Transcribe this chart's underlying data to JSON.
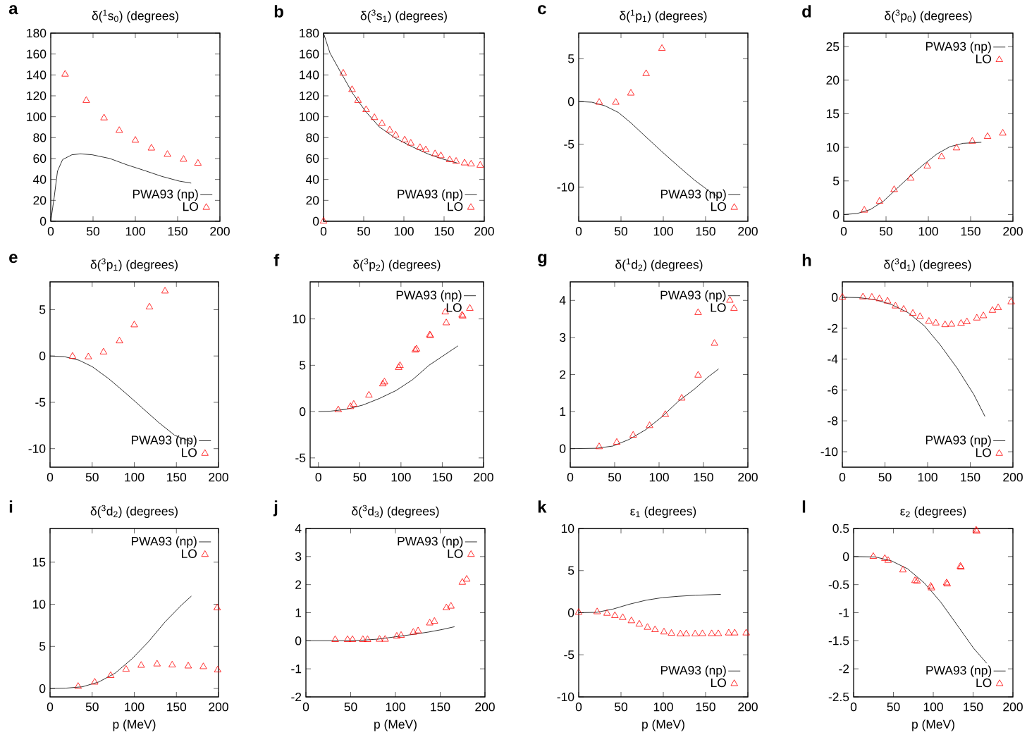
{
  "chart_data": [
    {
      "type": "line",
      "title": "δ($^{1}$s$_{0}$) (degrees)",
      "annotations": [
        "a"
      ],
      "legend": "bottom right",
      "xlim": [
        0,
        200
      ],
      "xticks": [
        0,
        50,
        100,
        150,
        200
      ],
      "ylim": [
        0,
        180
      ],
      "yticks": [
        0,
        20,
        40,
        60,
        80,
        100,
        120,
        140,
        160,
        180
      ],
      "series": [
        {
          "name": "PWA93 (np)",
          "color": "#000000",
          "type": "line",
          "x": [
            0,
            4,
            8,
            14,
            25,
            35,
            49,
            70,
            90,
            111,
            131,
            152,
            166
          ],
          "values": [
            0,
            22.6,
            48,
            59,
            63.6,
            64.5,
            63.6,
            60,
            54,
            48.5,
            43,
            38.4,
            36.5
          ]
        },
        {
          "name": "LO",
          "color": "#ff0000",
          "type": "scatter",
          "marker": "triangle",
          "x": [
            17,
            42,
            63,
            81,
            100,
            119,
            138,
            157,
            174
          ],
          "values": [
            140.6,
            115.5,
            98.8,
            86.8,
            77.4,
            69.9,
            63.9,
            59.2,
            55.4
          ]
        }
      ]
    },
    {
      "type": "line",
      "title": "δ($^{3}$s$_{1}$) (degrees)",
      "annotations": [
        "b"
      ],
      "legend": "bottom right",
      "xlim": [
        0,
        200
      ],
      "xticks": [
        0,
        50,
        100,
        150,
        200
      ],
      "ylim": [
        0,
        180
      ],
      "yticks": [
        0,
        20,
        40,
        60,
        80,
        100,
        120,
        140,
        160,
        180
      ],
      "series": [
        {
          "name": "PWA93 (np)",
          "color": "#000000",
          "type": "line",
          "x": [
            0,
            8,
            20.4,
            36.7,
            53,
            69.4,
            89.8,
            110,
            130.6,
            147,
            166.5
          ],
          "values": [
            180,
            161,
            143.8,
            121.8,
            104.5,
            90.3,
            79.3,
            71.4,
            64.2,
            59.8,
            55.7
          ]
        },
        {
          "name": "LO",
          "color": "#ff0000",
          "type": "scatter",
          "marker": "triangle",
          "x": [
            0,
            24.5,
            35.5,
            42.9,
            53,
            63.3,
            72.7,
            82.4,
            89.8,
            101,
            108.6,
            120,
            127.3,
            138.8,
            146,
            157,
            165,
            175.5,
            183.7,
            195
          ],
          "values": [
            0,
            141.6,
            125.9,
            115.5,
            106.7,
            99.1,
            93.5,
            87.2,
            82.4,
            77.7,
            74.6,
            70.5,
            68.3,
            64.5,
            62.6,
            58.8,
            57.3,
            55.7,
            54.7,
            53.5
          ]
        }
      ]
    },
    {
      "type": "line",
      "title": "δ($^{1}$p$_{1}$) (degrees)",
      "annotations": [
        "c"
      ],
      "legend": "bottom right",
      "xlim": [
        0,
        200
      ],
      "xticks": [
        0,
        50,
        100,
        150,
        200
      ],
      "ylim": [
        -14,
        8
      ],
      "yticks": [
        -10,
        -5,
        0,
        5
      ],
      "series": [
        {
          "name": "PWA93 (np)",
          "color": "#000000",
          "type": "line",
          "x": [
            0,
            15.6,
            31,
            46.9,
            62.5,
            78,
            97.7,
            117,
            137,
            156,
            166
          ],
          "values": [
            0,
            -0.08,
            -0.5,
            -1.28,
            -2.56,
            -4,
            -5.8,
            -7.5,
            -9.2,
            -10.6,
            -11.2
          ]
        },
        {
          "name": "LO",
          "color": "#ff0000",
          "type": "scatter",
          "marker": "triangle",
          "x": [
            24.2,
            43.8,
            61.7,
            79.7,
            98.4
          ],
          "values": [
            -0.1,
            -0.1,
            0.97,
            3.26,
            6.2
          ]
        }
      ]
    },
    {
      "type": "line",
      "title": "δ($^{3}$p$_{0}$) (degrees)",
      "annotations": [
        "d"
      ],
      "legend": "top right",
      "xlim": [
        0,
        200
      ],
      "xticks": [
        0,
        50,
        100,
        150,
        200
      ],
      "ylim": [
        -1,
        27
      ],
      "yticks": [
        0,
        5,
        10,
        15,
        20,
        25
      ],
      "series": [
        {
          "name": "PWA93 (np)",
          "color": "#000000",
          "type": "line",
          "x": [
            0,
            15.7,
            31.4,
            47,
            62.7,
            78.4,
            94,
            110,
            125.5,
            141,
            162.7
          ],
          "values": [
            0,
            0.15,
            0.74,
            2.0,
            3.85,
            5.7,
            7.4,
            9.0,
            10.1,
            10.6,
            10.75
          ]
        },
        {
          "name": "LO",
          "color": "#ff0000",
          "type": "scatter",
          "marker": "triangle",
          "x": [
            24.3,
            42.4,
            59.6,
            79.2,
            98.8,
            115.7,
            133.3,
            152,
            170,
            188
          ],
          "values": [
            0.64,
            1.97,
            3.7,
            5.4,
            7.2,
            8.6,
            9.9,
            10.9,
            11.6,
            12.1
          ]
        }
      ]
    },
    {
      "type": "line",
      "title": "δ($^{3}$p$_{1}$) (degrees)",
      "annotations": [
        "e"
      ],
      "legend": "bottom right",
      "xlim": [
        0,
        200
      ],
      "xticks": [
        0,
        50,
        100,
        150,
        200
      ],
      "ylim": [
        -12,
        8
      ],
      "yticks": [
        -10,
        -5,
        0,
        5
      ],
      "series": [
        {
          "name": "PWA93 (np)",
          "color": "#000000",
          "type": "line",
          "x": [
            0,
            16.9,
            34.5,
            50.2,
            69.8,
            89.4,
            109,
            128.6,
            148,
            167.8
          ],
          "values": [
            0,
            -0.07,
            -0.46,
            -1.16,
            -2.46,
            -3.98,
            -5.56,
            -7.15,
            -8.56,
            -9.26
          ]
        },
        {
          "name": "LO",
          "color": "#ff0000",
          "type": "scatter",
          "marker": "triangle",
          "x": [
            26.7,
            45.5,
            63.5,
            82.4,
            100,
            118,
            136.5
          ],
          "values": [
            -0.04,
            -0.1,
            0.42,
            1.62,
            3.35,
            5.28,
            7.0
          ]
        }
      ]
    },
    {
      "type": "line",
      "title": "δ($^{3}$p$_{2}$) (degrees)",
      "annotations": [
        "f"
      ],
      "legend": "top right",
      "xlim": [
        -10,
        200
      ],
      "xticks": [
        0,
        50,
        100,
        150,
        200
      ],
      "ylim": [
        -6,
        14
      ],
      "yticks": [
        -5,
        0,
        5,
        10
      ],
      "series": [
        {
          "name": "PWA93 (np)",
          "color": "#000000",
          "type": "line",
          "x": [
            0,
            14,
            34,
            54,
            74,
            94,
            114,
            134,
            169
          ],
          "values": [
            0,
            0.04,
            0.25,
            0.71,
            1.42,
            2.27,
            3.44,
            5.0,
            7.09
          ]
        },
        {
          "name": "LO",
          "color": "#ff0000",
          "type": "scatter",
          "marker": "triangle",
          "x": [
            24,
            38.8,
            42.8,
            61.2,
            78,
            80,
            97.2,
            98.8,
            117.2,
            118.8,
            134.8,
            135.6,
            153.6,
            154.8,
            174,
            174.8
          ],
          "values": [
            0.18,
            0.53,
            0.78,
            1.77,
            2.98,
            3.19,
            4.75,
            4.96,
            6.63,
            6.74,
            8.26,
            8.2,
            10.74,
            9.57,
            10.4,
            10.3
          ]
        }
      ]
    },
    {
      "type": "line",
      "title": "δ($^{1}$d$_{2}$) (degrees)",
      "annotations": [
        "g"
      ],
      "legend": "top right",
      "xlim": [
        0,
        200
      ],
      "xticks": [
        0,
        50,
        100,
        150,
        200
      ],
      "ylim": [
        -0.5,
        4.5
      ],
      "yticks": [
        0,
        1,
        2,
        3,
        4
      ],
      "series": [
        {
          "name": "PWA93 (np)",
          "color": "#000000",
          "type": "line",
          "x": [
            0,
            29.5,
            48,
            66.4,
            84.9,
            103.3,
            121.8,
            140,
            155,
            167
          ],
          "values": [
            0,
            0.01,
            0.07,
            0.25,
            0.51,
            0.86,
            1.28,
            1.61,
            1.93,
            2.15
          ]
        },
        {
          "name": "LO",
          "color": "#ff0000",
          "type": "scatter",
          "marker": "triangle",
          "x": [
            32.5,
            52.4,
            70.8,
            89.3,
            107,
            125.5,
            144,
            144,
            162.4,
            179.7
          ],
          "values": [
            0.05,
            0.17,
            0.36,
            0.62,
            0.92,
            1.36,
            1.98,
            3.67,
            2.84,
            4.0
          ]
        }
      ]
    },
    {
      "type": "line",
      "title": "δ($^{3}$d$_{1}$) (degrees)",
      "annotations": [
        "h"
      ],
      "legend": "bottom right",
      "xlim": [
        0,
        200
      ],
      "xticks": [
        0,
        50,
        100,
        150,
        200
      ],
      "ylim": [
        -11,
        1
      ],
      "yticks": [
        -10,
        -8,
        -6,
        -4,
        -2,
        0
      ],
      "series": [
        {
          "name": "PWA93 (np)",
          "color": "#000000",
          "type": "line",
          "x": [
            0,
            19,
            38.5,
            57.7,
            77,
            96,
            115,
            134.6,
            154,
            167.3
          ],
          "values": [
            0,
            -0.02,
            -0.15,
            -0.47,
            -0.99,
            -1.84,
            -3.1,
            -4.59,
            -6.28,
            -7.72
          ]
        },
        {
          "name": "LO",
          "color": "#ff0000",
          "type": "scatter",
          "marker": "triangle",
          "x": [
            0,
            24.2,
            34.6,
            43.5,
            53,
            62.3,
            71.9,
            82.7,
            91.2,
            101.5,
            109.6,
            120.4,
            128,
            139.2,
            146,
            157.7,
            165.4,
            176,
            182.7,
            198
          ],
          "values": [
            0,
            0.02,
            0,
            -0.1,
            -0.25,
            -0.57,
            -0.78,
            -1.04,
            -1.25,
            -1.56,
            -1.67,
            -1.78,
            -1.75,
            -1.69,
            -1.59,
            -1.35,
            -1.2,
            -0.85,
            -0.68,
            -0.3
          ]
        }
      ]
    },
    {
      "type": "line",
      "title": "δ($^{3}$d$_{2}$) (degrees)",
      "xlabel": "p (MeV)",
      "annotations": [
        "i"
      ],
      "legend": "top right",
      "xlim": [
        0,
        200
      ],
      "xticks": [
        0,
        50,
        100,
        150,
        200
      ],
      "ylim": [
        -1,
        19
      ],
      "yticks": [
        0,
        5,
        10,
        15
      ],
      "series": [
        {
          "name": "PWA93 (np)",
          "color": "#000000",
          "type": "line",
          "x": [
            0,
            18.8,
            38.4,
            58,
            77.6,
            97.3,
            116.9,
            136.5,
            156,
            167.8
          ],
          "values": [
            0,
            0.04,
            0.2,
            0.78,
            1.84,
            3.53,
            5.56,
            7.9,
            9.9,
            10.97
          ]
        },
        {
          "name": "LO",
          "color": "#ff0000",
          "type": "scatter",
          "marker": "triangle",
          "x": [
            33.3,
            53,
            72,
            90.2,
            108.2,
            127,
            145,
            164,
            182,
            199,
            198.4
          ],
          "values": [
            0.24,
            0.74,
            1.53,
            2.27,
            2.74,
            2.9,
            2.78,
            2.66,
            2.58,
            2.19,
            9.56
          ]
        }
      ]
    },
    {
      "type": "line",
      "title": "δ($^{3}$d$_{3}$) (degrees)",
      "xlabel": "p (MeV)",
      "annotations": [
        "j"
      ],
      "legend": "top right",
      "xlim": [
        0,
        200
      ],
      "xticks": [
        0,
        50,
        100,
        150,
        200
      ],
      "ylim": [
        -2,
        4
      ],
      "yticks": [
        -2,
        -1,
        0,
        1,
        2,
        3,
        4
      ],
      "series": [
        {
          "name": "PWA93 (np)",
          "color": "#000000",
          "type": "line",
          "x": [
            0,
            43.9,
            62.5,
            81,
            99.6,
            118.2,
            136.8,
            152,
            166
          ],
          "values": [
            0,
            0,
            0.02,
            0.06,
            0.14,
            0.22,
            0.31,
            0.4,
            0.5
          ]
        },
        {
          "name": "LO",
          "color": "#ff0000",
          "type": "scatter",
          "marker": "triangle",
          "x": [
            32.7,
            46.5,
            52,
            63.6,
            68.8,
            82.2,
            88.5,
            101.5,
            106.3,
            120,
            125.3,
            138.3,
            143.5,
            156.9,
            162,
            174.7,
            179.6
          ],
          "values": [
            0.04,
            0.04,
            0.04,
            0.04,
            0.04,
            0.05,
            0.05,
            0.16,
            0.19,
            0.3,
            0.35,
            0.63,
            0.69,
            1.17,
            1.23,
            2.08,
            2.19
          ]
        }
      ]
    },
    {
      "type": "line",
      "title": "ε$_{1}$ (degrees)",
      "xlabel": "p (MeV)",
      "annotations": [
        "k"
      ],
      "legend": "bottom right",
      "xlim": [
        0,
        200
      ],
      "xticks": [
        0,
        50,
        100,
        150,
        200
      ],
      "ylim": [
        -10,
        10
      ],
      "yticks": [
        -10,
        -5,
        0,
        5,
        10
      ],
      "series": [
        {
          "name": "PWA93 (np)",
          "color": "#000000",
          "type": "line",
          "x": [
            0,
            21,
            40.5,
            60,
            79.4,
            98.8,
            118.3,
            137.7,
            168
          ],
          "values": [
            0,
            0.04,
            0.43,
            1.01,
            1.48,
            1.79,
            1.95,
            2.07,
            2.18
          ]
        },
        {
          "name": "LO",
          "color": "#ff0000",
          "type": "scatter",
          "marker": "triangle",
          "x": [
            0,
            21.8,
            33.5,
            42.8,
            52,
            62.3,
            71.6,
            81.3,
            90.3,
            100.8,
            109.7,
            120.2,
            127.2,
            137.7,
            146.3,
            157.2,
            165,
            177.4,
            184.4,
            198
          ],
          "values": [
            0.04,
            0.1,
            -0.08,
            -0.35,
            -0.58,
            -0.97,
            -1.36,
            -1.75,
            -2.03,
            -2.3,
            -2.46,
            -2.53,
            -2.53,
            -2.53,
            -2.5,
            -2.5,
            -2.5,
            -2.42,
            -2.42,
            -2.42
          ]
        }
      ]
    },
    {
      "type": "line",
      "title": "ε$_{2}$ (degrees)",
      "xlabel": "p (MeV)",
      "annotations": [
        "l"
      ],
      "legend": "bottom right",
      "xlim": [
        0,
        200
      ],
      "xticks": [
        0,
        50,
        100,
        150,
        200
      ],
      "ylim": [
        -2.5,
        0.5
      ],
      "yticks": [
        -2.5,
        -2,
        -1.5,
        -1,
        -0.5,
        0,
        0.5
      ],
      "series": [
        {
          "name": "PWA93 (np)",
          "color": "#000000",
          "type": "line",
          "x": [
            0,
            26.8,
            47.4,
            68,
            88.7,
            109.3,
            130,
            150.5,
            167
          ],
          "values": [
            0,
            -0.006,
            -0.076,
            -0.22,
            -0.47,
            -0.81,
            -1.22,
            -1.63,
            -1.9
          ]
        },
        {
          "name": "LO",
          "color": "#ff0000",
          "type": "scatter",
          "marker": "triangle",
          "x": [
            24.7,
            39.2,
            43.3,
            61.9,
            77.1,
            79.6,
            96.9,
            97.7,
            116.7,
            117.5,
            134,
            134.8,
            153.8,
            154.6
          ],
          "values": [
            0,
            -0.035,
            -0.07,
            -0.24,
            -0.43,
            -0.44,
            -0.53,
            -0.56,
            -0.47,
            -0.49,
            -0.175,
            -0.19,
            0.47,
            0.45
          ]
        }
      ]
    }
  ]
}
